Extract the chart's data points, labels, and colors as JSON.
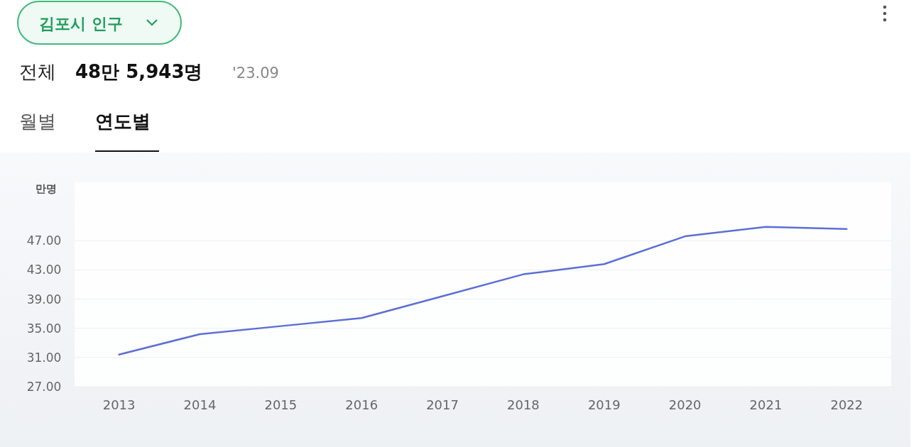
{
  "chart_data": {
    "type": "line",
    "title": "김포시 인구",
    "subtitle": "전체",
    "annotations": [
      "48만 5,943명",
      "'23.09",
      "월별",
      "연도별"
    ],
    "ylabel": "만명",
    "categories": [
      "2013",
      "2014",
      "2015",
      "2016",
      "2017",
      "2018",
      "2019",
      "2020",
      "2021",
      "2022"
    ],
    "series": [
      {
        "color": "#5b6fd6",
        "values": [
          31.4,
          34.2,
          35.3,
          36.4,
          39.4,
          42.4,
          43.8,
          47.6,
          48.9,
          48.6
        ]
      }
    ],
    "ylim": [
      27,
      55
    ],
    "yticks": [
      {
        "value": 27,
        "label": "27.00"
      },
      {
        "value": 31,
        "label": "31.00"
      },
      {
        "value": 35,
        "label": "35.00"
      },
      {
        "value": 39,
        "label": "39.00"
      },
      {
        "value": 43,
        "label": "43.00"
      },
      {
        "value": 47,
        "label": "47.00"
      }
    ],
    "grid": "y",
    "marker": "none",
    "line_style": "solid"
  }
}
